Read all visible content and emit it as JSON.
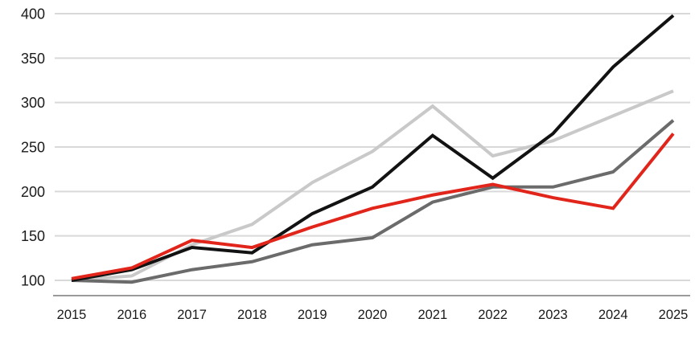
{
  "chart_data": {
    "type": "line",
    "title": "",
    "xlabel": "",
    "ylabel": "",
    "legend": "none",
    "grid": true,
    "x": [
      2015,
      2016,
      2017,
      2018,
      2019,
      2020,
      2021,
      2022,
      2023,
      2024,
      2025
    ],
    "ylim": [
      100,
      400
    ],
    "ytick_step": 50,
    "y_tick_labels": [
      "400",
      "350",
      "300",
      "250",
      "200",
      "150",
      "100"
    ],
    "x_tick_labels": [
      "2015",
      "2016",
      "2017",
      "2018",
      "2019",
      "2020",
      "2021",
      "2022",
      "2023",
      "2024",
      "2025"
    ],
    "series": [
      {
        "name": "light-gray-series",
        "color": "#c9c9c9",
        "values": [
          100,
          105,
          140,
          163,
          210,
          245,
          296,
          240,
          257,
          285,
          313
        ]
      },
      {
        "name": "dark-gray-series",
        "color": "#6b6b6b",
        "values": [
          100,
          98,
          112,
          121,
          140,
          148,
          188,
          205,
          205,
          222,
          280
        ]
      },
      {
        "name": "black-series",
        "color": "#121212",
        "values": [
          100,
          112,
          137,
          131,
          175,
          205,
          263,
          215,
          265,
          340,
          398
        ]
      },
      {
        "name": "red-series",
        "color": "#e1251b",
        "values": [
          102,
          114,
          145,
          137,
          160,
          181,
          196,
          208,
          193,
          181,
          265
        ]
      }
    ],
    "style": {
      "gridline_color": "#d9d9d9",
      "axis_line_color": "#9a9a9a",
      "line_width": 4,
      "background": "#ffffff"
    }
  }
}
